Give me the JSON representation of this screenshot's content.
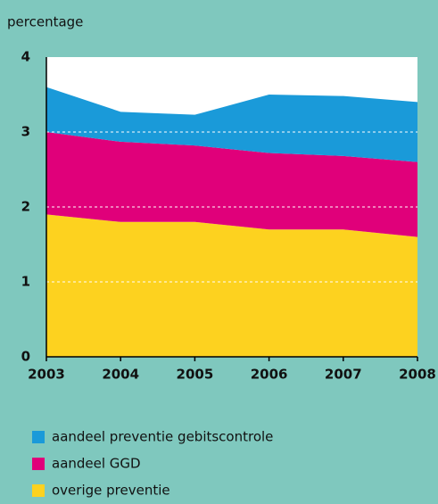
{
  "chart_data": {
    "type": "stacked-area",
    "y_label": "percentage",
    "x": [
      2003,
      2004,
      2005,
      2006,
      2007,
      2008
    ],
    "xlim": [
      2003,
      2008
    ],
    "xticks": [
      2003,
      2004,
      2005,
      2006,
      2007,
      2008
    ],
    "ylim": [
      0,
      4
    ],
    "yticks": [
      0,
      1,
      2,
      3,
      4
    ],
    "grid": true,
    "series": [
      {
        "name": "aandeel preventie gebitscontrole",
        "color": "#1a9ad9",
        "values": [
          0.6,
          0.4,
          0.41,
          0.78,
          0.8,
          0.8
        ]
      },
      {
        "name": "aandeel GGD",
        "color": "#e0007a",
        "values": [
          1.1,
          1.07,
          1.02,
          1.02,
          0.98,
          1.0
        ]
      },
      {
        "name": "overige preventie",
        "color": "#fdd21f",
        "values": [
          1.9,
          1.8,
          1.8,
          1.7,
          1.7,
          1.6
        ]
      }
    ]
  }
}
